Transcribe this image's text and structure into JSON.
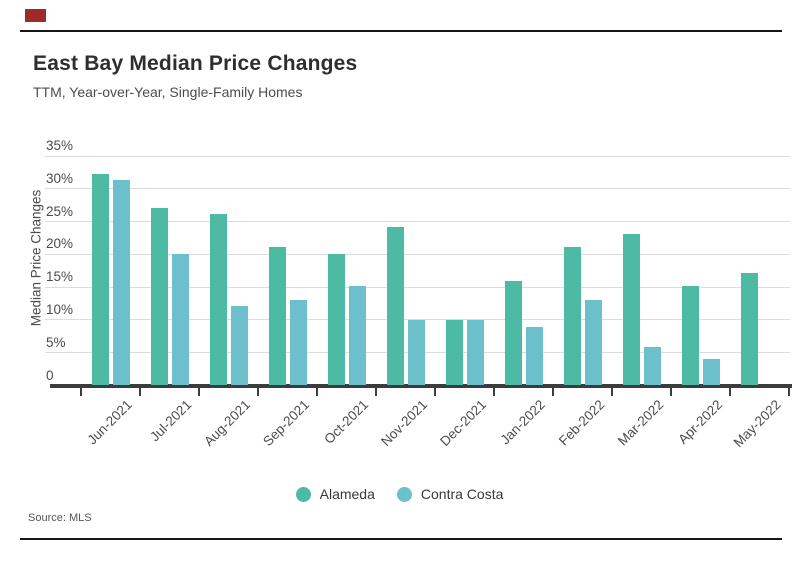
{
  "header": {
    "title": "East Bay Median Price Changes",
    "subtitle": "TTM, Year-over-Year, Single-Family Homes"
  },
  "footer": {
    "source": "Source: MLS"
  },
  "colors": {
    "logo_red": "#a02a25",
    "alameda": "#4dbaa4",
    "contra_costa": "#6cc0cb",
    "gridline": "#dcdcdc",
    "axis": "#3c3c3c",
    "rule": "#161616"
  },
  "legend": [
    {
      "label": "Alameda",
      "color": "#4dbaa4"
    },
    {
      "label": "Contra Costa",
      "color": "#6cc0cb"
    }
  ],
  "chart_data": {
    "type": "bar",
    "title": "East Bay Median Price Changes",
    "subtitle": "TTM, Year-over-Year, Single-Family Homes",
    "xlabel": "",
    "ylabel": "Median Price Changes",
    "ylim": [
      0,
      35
    ],
    "ytick_step": 5,
    "ytick_labels": [
      "0",
      "5%",
      "10%",
      "15%",
      "20%",
      "25%",
      "30%",
      "35%"
    ],
    "grid": true,
    "legend_position": "bottom",
    "categories": [
      "Jun-2021",
      "Jul-2021",
      "Aug-2021",
      "Sep-2021",
      "Oct-2021",
      "Nov-2021",
      "Dec-2021",
      "Jan-2022",
      "Feb-2022",
      "Mar-2022",
      "Apr-2022",
      "May-2022"
    ],
    "series": [
      {
        "name": "Alameda",
        "color": "#4dbaa4",
        "values": [
          32.3,
          27.1,
          26.2,
          21.1,
          20.0,
          24.1,
          10.0,
          16.0,
          21.1,
          23.1,
          15.1,
          17.1
        ]
      },
      {
        "name": "Contra Costa",
        "color": "#6cc0cb",
        "values": [
          31.3,
          20.0,
          12.1,
          13.0,
          15.1,
          10.0,
          10.0,
          8.9,
          13.0,
          5.9,
          4.1,
          null
        ]
      }
    ],
    "source": "Source: MLS"
  }
}
